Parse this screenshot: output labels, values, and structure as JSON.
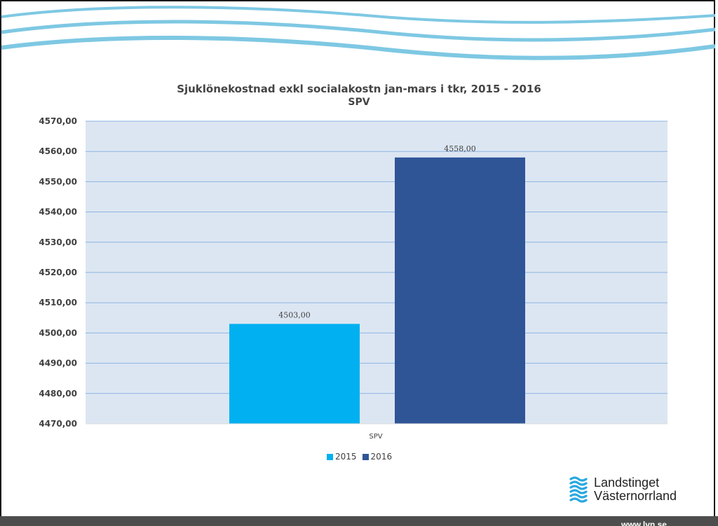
{
  "colors": {
    "plot_bg": "#dce6f2",
    "gridline": "#8eb4e3",
    "wave": "#7ec8e3",
    "axis_text": "#404040",
    "footer": "#4d4d4d",
    "logo_blue": "#29a8e0"
  },
  "logo": {
    "icon": "waves-logo-icon",
    "line1": "Landstinget",
    "line2": "Västernorrland"
  },
  "footer": {
    "url": "www.lvn.se"
  },
  "chart_data": {
    "type": "bar",
    "title": "Sjuklönekostnad exkl socialakostn  jan-mars i tkr, 2015 - 2016",
    "subtitle": "SPV",
    "categories": [
      "SPV"
    ],
    "series": [
      {
        "name": "2015",
        "values": [
          4503.0
        ],
        "color": "#00b0f0",
        "label": "4503,00"
      },
      {
        "name": "2016",
        "values": [
          4558.0
        ],
        "color": "#2f5597",
        "label": "4558,00"
      }
    ],
    "ylim": [
      4470,
      4570
    ],
    "yticks": [
      "4470,00",
      "4480,00",
      "4490,00",
      "4500,00",
      "4510,00",
      "4520,00",
      "4530,00",
      "4540,00",
      "4550,00",
      "4560,00",
      "4570,00"
    ],
    "grid": true,
    "legend": "bottom"
  }
}
